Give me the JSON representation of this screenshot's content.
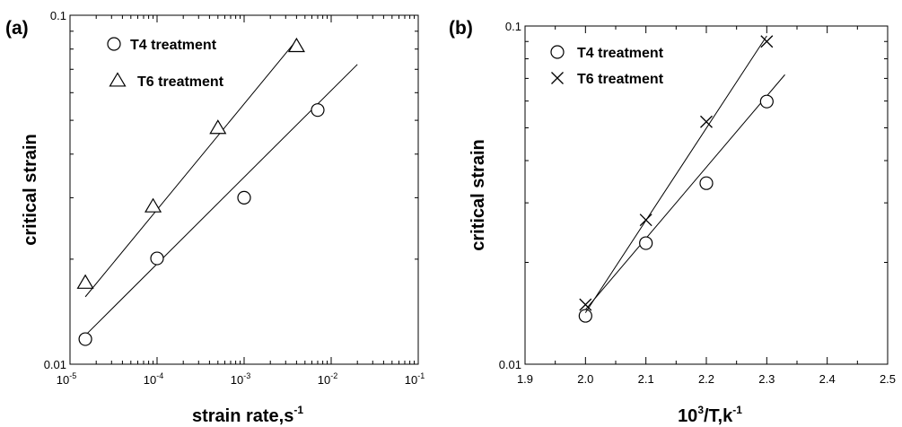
{
  "chart_data": [
    {
      "type": "scatter",
      "panel_label": "(a)",
      "xlabel": "strain rate,s",
      "xlabel_sup": "-1",
      "ylabel": "critical strain",
      "x_scale": "log",
      "y_scale": "log",
      "xlim": [
        1e-05,
        0.1
      ],
      "ylim": [
        0.01,
        0.1
      ],
      "x_ticks": [
        {
          "base": "10",
          "exp": "-5",
          "value": 1e-05
        },
        {
          "base": "10",
          "exp": "-4",
          "value": 0.0001
        },
        {
          "base": "10",
          "exp": "-3",
          "value": 0.001
        },
        {
          "base": "10",
          "exp": "-2",
          "value": 0.01
        },
        {
          "base": "10",
          "exp": "-1",
          "value": 0.1
        }
      ],
      "y_ticks": [
        {
          "label": "0.01",
          "value": 0.01
        },
        {
          "label": "0.1",
          "value": 0.1
        }
      ],
      "grid": false,
      "legend_position": "top-left",
      "series": [
        {
          "name": "T4 treatment",
          "marker": "circle",
          "x": [
            1.5e-05,
            0.0001,
            0.001,
            0.007
          ],
          "y": [
            0.0118,
            0.0201,
            0.03,
            0.0535
          ],
          "fit": {
            "x": [
              1.5e-05,
              0.02
            ],
            "y": [
              0.0121,
              0.0723
            ]
          }
        },
        {
          "name": "T6 treatment",
          "marker": "triangle",
          "x": [
            1.5e-05,
            9e-05,
            0.0005,
            0.004
          ],
          "y": [
            0.0171,
            0.0283,
            0.0475,
            0.0815
          ],
          "fit": {
            "x": [
              1.5e-05,
              0.004
            ],
            "y": [
              0.0156,
              0.0848
            ]
          }
        }
      ]
    },
    {
      "type": "scatter",
      "panel_label": "(b)",
      "xlabel": "10",
      "xlabel_sup": "3",
      "xlabel_suffix": "/T,k",
      "xlabel_suffix_sup": "-1",
      "ylabel": "critical strain",
      "x_scale": "linear",
      "y_scale": "log",
      "xlim": [
        1.9,
        2.5
      ],
      "ylim": [
        0.01,
        0.1
      ],
      "x_ticks": [
        {
          "label": "1.9",
          "value": 1.9
        },
        {
          "label": "2.0",
          "value": 2.0
        },
        {
          "label": "2.1",
          "value": 2.1
        },
        {
          "label": "2.2",
          "value": 2.2
        },
        {
          "label": "2.3",
          "value": 2.3
        },
        {
          "label": "2.4",
          "value": 2.4
        },
        {
          "label": "2.5",
          "value": 2.5
        }
      ],
      "y_ticks": [
        {
          "label": "0.01",
          "value": 0.01
        },
        {
          "label": "0.1",
          "value": 0.1
        }
      ],
      "grid": false,
      "legend_position": "top-left",
      "series": [
        {
          "name": "T4 treatment",
          "marker": "circle",
          "x": [
            2.0,
            2.1,
            2.2,
            2.3
          ],
          "y": [
            0.0139,
            0.0228,
            0.0343,
            0.0598
          ],
          "fit": {
            "x": [
              2.0,
              2.33
            ],
            "y": [
              0.0145,
              0.0718
            ]
          }
        },
        {
          "name": "T6 treatment",
          "marker": "x",
          "x": [
            2.0,
            2.1,
            2.2,
            2.3
          ],
          "y": [
            0.015,
            0.0267,
            0.0521,
            0.09
          ],
          "fit": {
            "x": [
              2.0,
              2.3
            ],
            "y": [
              0.0142,
              0.0935
            ]
          }
        }
      ]
    }
  ]
}
